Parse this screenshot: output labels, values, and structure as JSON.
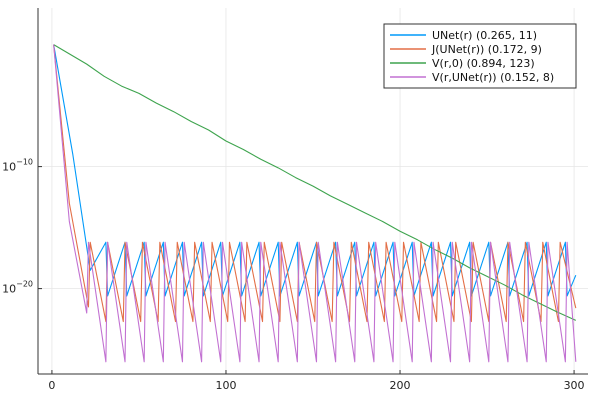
{
  "chart_data": {
    "type": "line",
    "title": "",
    "xlabel": "",
    "ylabel": "",
    "yscale": "log10",
    "xlim": [
      -8,
      308
    ],
    "ylim_log10": [
      -27,
      3
    ],
    "xticks": [
      0,
      100,
      200,
      300
    ],
    "yticks": [
      {
        "base": "10",
        "exponent": "−10",
        "log10": -10
      },
      {
        "base": "10",
        "exponent": "−20",
        "log10": -20
      }
    ],
    "grid": true,
    "legend_position": "top-right",
    "series": [
      {
        "name": "UNet(r) (0.265, 11)",
        "color": "#009AFA",
        "x": [
          1,
          12,
          22,
          31,
          32,
          42,
          43,
          53,
          54,
          64,
          65,
          75,
          76,
          86,
          87,
          97,
          98,
          108,
          109,
          119,
          120,
          130,
          131,
          141,
          142,
          152,
          153,
          163,
          164,
          174,
          175,
          185,
          186,
          196,
          197,
          207,
          208,
          218,
          219,
          229,
          230,
          240,
          241,
          251,
          252,
          262,
          263,
          273,
          274,
          284,
          285,
          295,
          296,
          301
        ],
        "log10_y": [
          0,
          -9.0,
          -18.5,
          -16.2,
          -20.6,
          -16.2,
          -20.6,
          -16.2,
          -20.6,
          -16.2,
          -20.6,
          -16.2,
          -20.6,
          -16.2,
          -20.6,
          -16.2,
          -20.6,
          -16.2,
          -20.6,
          -16.2,
          -20.6,
          -16.2,
          -20.6,
          -16.2,
          -20.6,
          -16.2,
          -20.6,
          -16.2,
          -20.6,
          -16.2,
          -20.6,
          -16.2,
          -20.6,
          -16.2,
          -20.6,
          -16.2,
          -20.6,
          -16.2,
          -20.6,
          -16.2,
          -20.6,
          -16.2,
          -20.6,
          -16.2,
          -20.6,
          -16.2,
          -20.6,
          -16.2,
          -20.6,
          -16.2,
          -20.6,
          -16.2,
          -20.6,
          -18.9
        ]
      },
      {
        "name": "J(UNet(r)) (0.172, 9)",
        "color": "#E36F47",
        "x": [
          1,
          10,
          21,
          22,
          31,
          32,
          41,
          42,
          51,
          52,
          61,
          62,
          71,
          72,
          81,
          82,
          91,
          92,
          101,
          102,
          111,
          112,
          121,
          122,
          131,
          132,
          141,
          142,
          151,
          152,
          161,
          162,
          171,
          172,
          181,
          182,
          191,
          192,
          201,
          202,
          211,
          212,
          221,
          222,
          231,
          232,
          241,
          242,
          251,
          252,
          261,
          262,
          271,
          272,
          281,
          282,
          291,
          292,
          301
        ],
        "log10_y": [
          0,
          -13.0,
          -21.5,
          -16.2,
          -22.7,
          -16.2,
          -22.7,
          -16.2,
          -22.7,
          -16.2,
          -22.7,
          -16.2,
          -22.7,
          -16.2,
          -22.7,
          -16.2,
          -22.7,
          -16.2,
          -22.7,
          -16.2,
          -22.7,
          -16.2,
          -22.7,
          -16.2,
          -22.7,
          -16.2,
          -22.7,
          -16.2,
          -22.7,
          -16.2,
          -22.7,
          -16.2,
          -22.7,
          -16.2,
          -22.7,
          -16.2,
          -22.7,
          -16.2,
          -22.7,
          -16.2,
          -22.7,
          -16.2,
          -22.7,
          -16.2,
          -22.7,
          -16.2,
          -22.7,
          -16.2,
          -22.7,
          -16.2,
          -22.7,
          -16.2,
          -22.7,
          -16.2,
          -22.7,
          -16.2,
          -22.7,
          -16.2,
          -21.6
        ]
      },
      {
        "name": "V(r,0) (0.894, 123)",
        "color": "#3EA44E",
        "x": [
          1,
          20,
          30,
          40,
          50,
          60,
          70,
          80,
          90,
          100,
          110,
          120,
          130,
          140,
          150,
          160,
          170,
          180,
          190,
          200,
          210,
          220,
          230,
          240,
          250,
          260,
          270,
          280,
          290,
          301
        ],
        "log10_y": [
          0,
          -1.6,
          -2.6,
          -3.4,
          -4.0,
          -4.8,
          -5.5,
          -6.3,
          -7.0,
          -7.9,
          -8.6,
          -9.4,
          -10.1,
          -10.9,
          -11.6,
          -12.4,
          -13.1,
          -13.8,
          -14.5,
          -15.3,
          -16.0,
          -16.8,
          -17.5,
          -18.3,
          -19.0,
          -19.7,
          -20.5,
          -21.2,
          -21.9,
          -22.6
        ]
      },
      {
        "name": "V(r,UNet(r)) (0.152, 8)",
        "color": "#C271D2",
        "x": [
          1,
          10,
          20,
          21,
          31,
          32,
          42,
          43,
          53,
          54,
          64,
          65,
          75,
          76,
          86,
          87,
          97,
          98,
          108,
          109,
          119,
          120,
          130,
          131,
          141,
          142,
          152,
          153,
          163,
          164,
          174,
          175,
          185,
          186,
          196,
          197,
          207,
          208,
          218,
          219,
          229,
          230,
          240,
          241,
          251,
          252,
          262,
          263,
          273,
          274,
          284,
          285,
          295,
          296,
          301
        ],
        "log10_y": [
          0,
          -14.5,
          -22.0,
          -16.2,
          -26.0,
          -16.2,
          -26.0,
          -16.2,
          -26.0,
          -16.2,
          -26.0,
          -16.2,
          -26.0,
          -16.2,
          -26.0,
          -16.2,
          -26.0,
          -16.2,
          -26.0,
          -16.2,
          -26.0,
          -16.2,
          -26.0,
          -16.2,
          -26.0,
          -16.2,
          -26.0,
          -16.2,
          -26.0,
          -16.2,
          -26.0,
          -16.2,
          -26.0,
          -16.2,
          -26.0,
          -16.2,
          -26.0,
          -16.2,
          -26.0,
          -16.2,
          -26.0,
          -16.2,
          -26.0,
          -16.2,
          -26.0,
          -16.2,
          -26.0,
          -16.2,
          -26.0,
          -16.2,
          -26.0,
          -16.2,
          -26.0,
          -16.2,
          -26.0
        ]
      }
    ]
  }
}
